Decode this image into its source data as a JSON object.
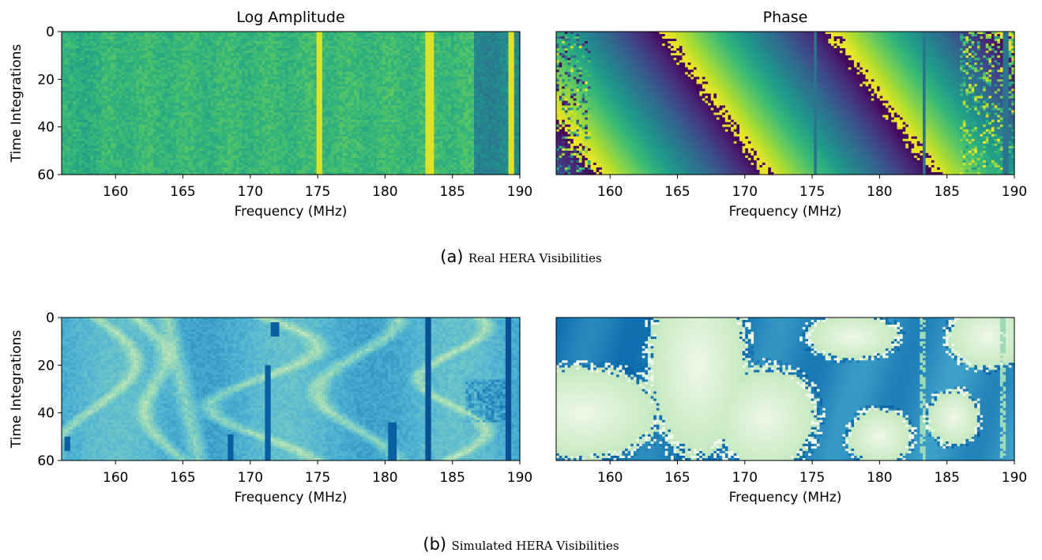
{
  "chart_data": [
    {
      "type": "heatmap",
      "title": "Log Amplitude",
      "xlabel": "Frequency (MHz)",
      "ylabel": "Time Integrations",
      "xlim": [
        156,
        190
      ],
      "ylim": [
        60,
        0
      ],
      "xticks": [
        160,
        165,
        170,
        175,
        180,
        185,
        190
      ],
      "yticks": [
        0,
        20,
        40,
        60
      ],
      "colormap": "viridis",
      "features": {
        "rfi_lines_mhz": [
          175.2,
          183.3,
          189.3
        ]
      }
    },
    {
      "type": "heatmap",
      "title": "Phase",
      "xlabel": "Frequency (MHz)",
      "ylabel": "",
      "xlim": [
        156,
        190
      ],
      "ylim": [
        60,
        0
      ],
      "xticks": [
        160,
        165,
        170,
        175,
        180,
        185,
        190
      ],
      "yticks": [],
      "colormap": "viridis",
      "features": {
        "phase_wrap_period_mhz": 12.5,
        "rfi_lines_mhz": [
          175.2,
          183.3,
          189.3
        ]
      }
    },
    {
      "type": "heatmap",
      "title": "",
      "xlabel": "Frequency (MHz)",
      "ylabel": "Time Integrations",
      "xlim": [
        156,
        190
      ],
      "ylim": [
        60,
        0
      ],
      "xticks": [
        160,
        165,
        170,
        175,
        180,
        185,
        190
      ],
      "yticks": [
        0,
        20,
        40,
        60
      ],
      "colormap": "GnBu",
      "features": {
        "rfi_lines_mhz": [
          183.2,
          189.2
        ]
      }
    },
    {
      "type": "heatmap",
      "title": "",
      "xlabel": "Frequency (MHz)",
      "ylabel": "",
      "xlim": [
        156,
        190
      ],
      "ylim": [
        60,
        0
      ],
      "xticks": [
        160,
        165,
        170,
        175,
        180,
        185,
        190
      ],
      "yticks": [],
      "colormap": "GnBu",
      "features": {
        "rfi_lines_mhz": [
          183.2,
          189.2
        ]
      }
    }
  ],
  "captions": [
    {
      "tag": "(a)",
      "text": "Real HERA Visibilities"
    },
    {
      "tag": "(b)",
      "text": "Simulated HERA Visibilities"
    }
  ]
}
